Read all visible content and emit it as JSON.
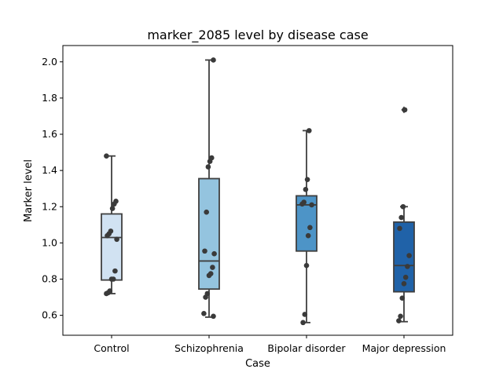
{
  "chart_data": {
    "type": "boxplot",
    "title": "marker_2085 level by disease case",
    "xlabel": "Case",
    "ylabel": "Marker level",
    "ylim": [
      0.49,
      2.09
    ],
    "yticks": [
      0.6,
      0.8,
      1.0,
      1.2,
      1.4,
      1.6,
      1.8,
      2.0
    ],
    "ytick_labels": [
      "0.6",
      "0.8",
      "1.0",
      "1.2",
      "1.4",
      "1.6",
      "1.8",
      "2.0"
    ],
    "grid": false,
    "categories": [
      "Control",
      "Schizophrenia",
      "Bipolar disorder",
      "Major depression"
    ],
    "colors": [
      "#d1e2f2",
      "#94c4df",
      "#4d94c7",
      "#2062a8"
    ],
    "edge_color": "#3f3f3f",
    "point_color": "#3a3a3a",
    "boxes": [
      {
        "whislo": 0.72,
        "q1": 0.795,
        "med": 1.03,
        "q3": 1.16,
        "whishi": 1.48,
        "fliers": []
      },
      {
        "whislo": 0.59,
        "q1": 0.745,
        "med": 0.9,
        "q3": 1.355,
        "whishi": 2.01,
        "fliers": []
      },
      {
        "whislo": 0.56,
        "q1": 0.955,
        "med": 1.21,
        "q3": 1.26,
        "whishi": 1.62,
        "fliers": []
      },
      {
        "whislo": 0.565,
        "q1": 0.73,
        "med": 0.875,
        "q3": 1.115,
        "whishi": 1.2,
        "fliers": [
          1.735
        ]
      }
    ],
    "points": [
      [
        1.48,
        1.23,
        1.215,
        1.19,
        1.065,
        1.05,
        1.04,
        1.02,
        0.845,
        0.8,
        0.8,
        0.735,
        0.725,
        0.72
      ],
      [
        2.01,
        1.47,
        1.45,
        1.42,
        1.17,
        0.955,
        0.94,
        0.865,
        0.83,
        0.82,
        0.72,
        0.7,
        0.61,
        0.595
      ],
      [
        1.62,
        1.35,
        1.295,
        1.225,
        1.215,
        1.21,
        1.085,
        1.04,
        0.875,
        0.605,
        0.56
      ],
      [
        1.735,
        1.2,
        1.14,
        1.08,
        0.93,
        0.87,
        0.81,
        0.775,
        0.695,
        0.595,
        0.57
      ]
    ]
  }
}
